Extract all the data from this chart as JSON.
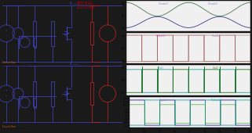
{
  "outer_bg": "#1a1a1a",
  "top_bar_color": "#1a1a1a",
  "schematic_bg": "#c8c8c8",
  "plot_area_bg": "#d0d0d0",
  "panel_bg": "#f5f5f5",
  "panel_border": "#888888",
  "waveform_colors": {
    "p1_green": "#4a7a4a",
    "p1_blue": "#3a3a8a",
    "p2_purple": "#9a4a9a",
    "p2_olive": "#7a7a20",
    "p3_cyan": "#20a0a0",
    "p3_green": "#207020",
    "p4_blue": "#2020a0",
    "p4_cyan": "#20a0a0",
    "p4_green": "#20a020"
  },
  "label_colors": {
    "p1_green": "#7070c0",
    "p1_blue": "#7070c0",
    "p2_purple": "#c040c0",
    "p2_olive": "#7070c0",
    "p3_cyan": "#20a0a0",
    "p3_green": "#20a020",
    "p4_blue": "#7070c0",
    "p4_cyan": "#20a0a0"
  },
  "schem_blue": "#4444cc",
  "schem_red": "#cc2222",
  "schem_orange": "#cc6600",
  "schem_anno_red": "#cc0000"
}
